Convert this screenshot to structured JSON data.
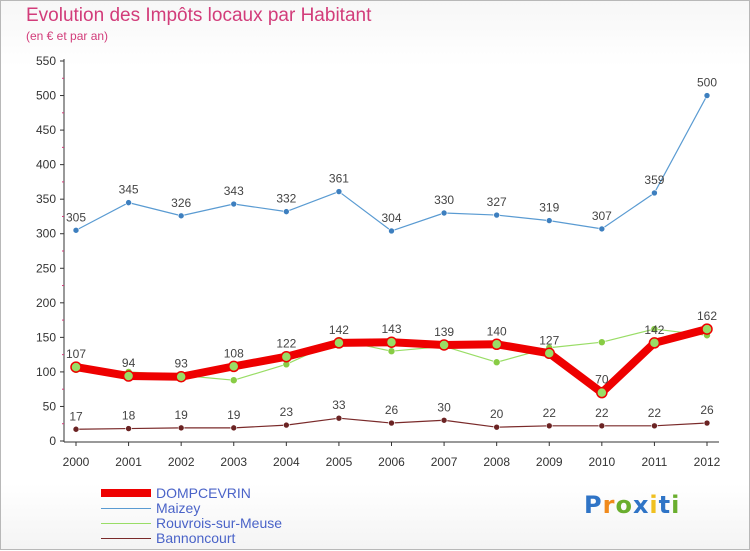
{
  "header": {
    "title": "Evolution des Impôts locaux par Habitant",
    "subtitle": "(en € et par an)"
  },
  "logo": {
    "letters": [
      {
        "char": "P",
        "color": "#2f74c6"
      },
      {
        "char": "r",
        "color": "#f08a1c"
      },
      {
        "char": "o",
        "color": "#6aae2e"
      },
      {
        "char": "x",
        "color": "#2f74c6"
      },
      {
        "char": "i",
        "color": "#f0c020"
      },
      {
        "char": "t",
        "color": "#2f74c6"
      },
      {
        "char": "i",
        "color": "#6aae2e"
      }
    ]
  },
  "chart_data": {
    "type": "line",
    "title": "Evolution des Impôts locaux par Habitant",
    "subtitle": "(en € et par an)",
    "xlabel": "",
    "ylabel": "",
    "categories": [
      "2000",
      "2001",
      "2002",
      "2003",
      "2004",
      "2005",
      "2006",
      "2007",
      "2008",
      "2009",
      "2010",
      "2011",
      "2012"
    ],
    "yticks": [
      0,
      50,
      100,
      150,
      200,
      250,
      300,
      350,
      400,
      450,
      500,
      550
    ],
    "ylim": [
      0,
      550
    ],
    "grid": false,
    "legend_position": "bottom-left",
    "series": [
      {
        "name": "DOMPCEVRIN",
        "color": "#ee0000",
        "values": [
          107,
          94,
          93,
          108,
          122,
          142,
          143,
          139,
          140,
          127,
          70,
          142,
          162
        ]
      },
      {
        "name": "Maizey",
        "color": "#5a9bd2",
        "values": [
          305,
          345,
          326,
          343,
          332,
          361,
          304,
          330,
          327,
          319,
          307,
          359,
          500
        ]
      },
      {
        "name": "Rouvrois-sur-Meuse",
        "color": "#99dd66",
        "values": [
          103,
          100,
          95,
          88,
          111,
          146,
          130,
          137,
          114,
          135,
          143,
          162,
          153
        ]
      },
      {
        "name": "Bannoncourt",
        "color": "#7a2a2a",
        "values": [
          17,
          18,
          19,
          19,
          23,
          33,
          26,
          30,
          20,
          22,
          22,
          22,
          26
        ]
      }
    ]
  }
}
